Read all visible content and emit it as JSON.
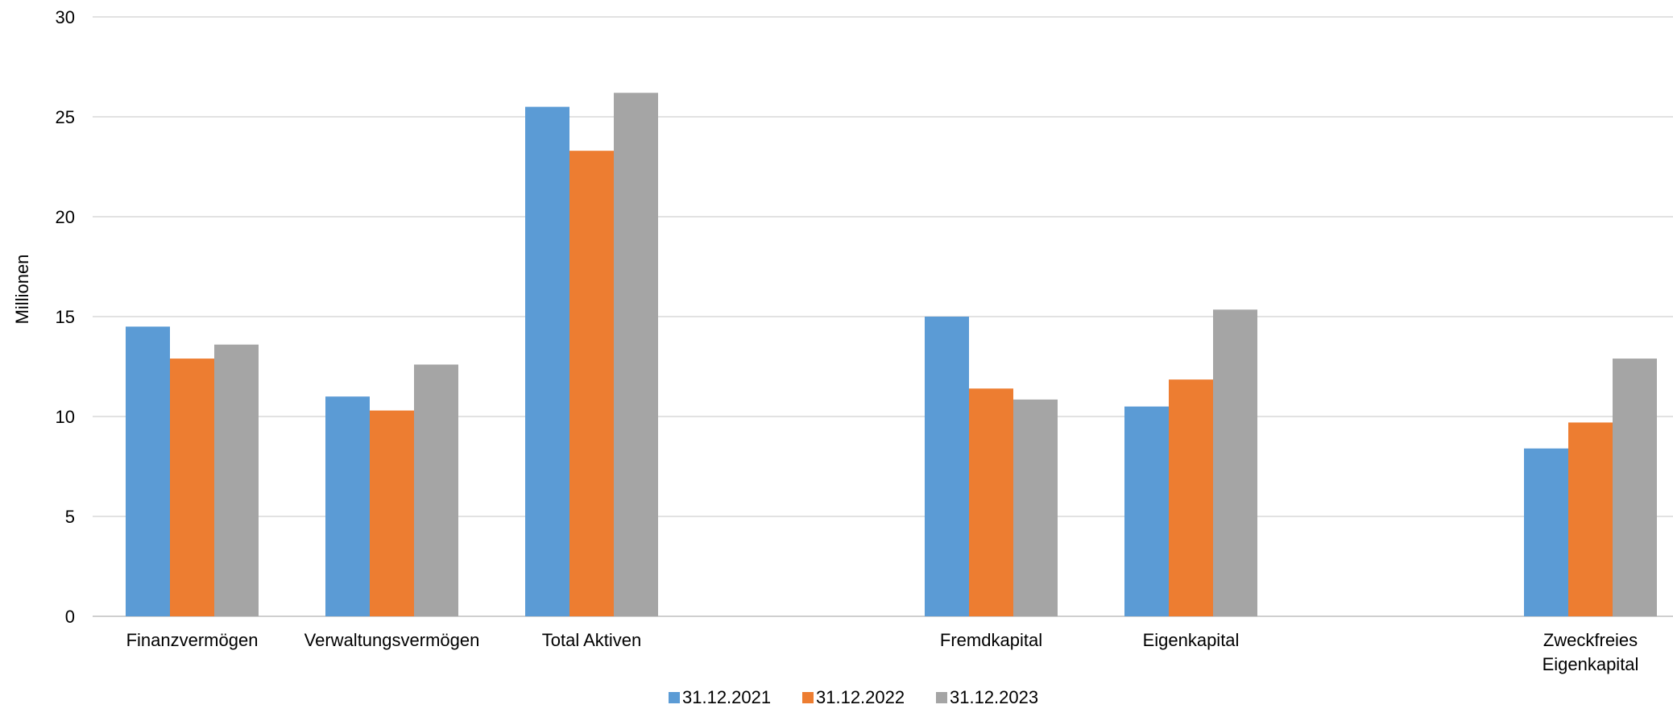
{
  "chart_data": {
    "type": "bar",
    "title": "",
    "xlabel": "",
    "ylabel": "Millionen",
    "ylim": [
      0,
      30
    ],
    "yticks": [
      0,
      5,
      10,
      15,
      20,
      25,
      30
    ],
    "grid": true,
    "legend_position": "bottom",
    "categories": [
      "Finanzvermögen",
      "Verwaltungsvermögen",
      "Total Aktiven",
      "",
      "Fremdkapital",
      "Eigenkapital",
      "",
      "Zweckfreies Eigenkapital"
    ],
    "category_label_lines": [
      [
        "Finanzvermögen"
      ],
      [
        "Verwaltungsvermögen"
      ],
      [
        "Total Aktiven"
      ],
      [],
      [
        "Fremdkapital"
      ],
      [
        "Eigenkapital"
      ],
      [],
      [
        "Zweckfreies",
        "Eigenkapital"
      ]
    ],
    "series": [
      {
        "name": "31.12.2021",
        "color": "#5B9BD5",
        "values": [
          14.5,
          11.0,
          25.5,
          null,
          15.0,
          10.5,
          null,
          8.4
        ]
      },
      {
        "name": "31.12.2022",
        "color": "#ED7D31",
        "values": [
          12.9,
          10.3,
          23.3,
          null,
          11.4,
          11.85,
          null,
          9.7
        ]
      },
      {
        "name": "31.12.2023",
        "color": "#A5A5A5",
        "values": [
          13.6,
          12.6,
          26.2,
          null,
          10.85,
          15.35,
          null,
          12.9
        ]
      }
    ]
  }
}
